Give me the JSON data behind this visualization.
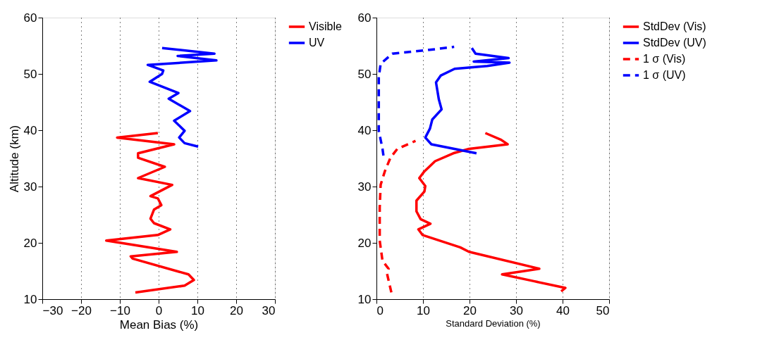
{
  "chart_data": [
    {
      "type": "line",
      "xlabel": "Mean Bias (%)",
      "ylabel": "Altitude (km)",
      "xlim": [
        -30,
        30
      ],
      "xticks": [
        -30,
        -20,
        -10,
        0,
        10,
        20,
        30
      ],
      "ylim": [
        10,
        60
      ],
      "yticks": [
        10,
        20,
        30,
        40,
        50,
        60
      ],
      "grid": "x",
      "legend": "right",
      "line_style": "solid",
      "series": [
        {
          "name": "Visible",
          "color": "#ff0000",
          "x": [
            -6.0,
            6.7,
            9.1,
            7.7,
            -6.7,
            -7.2,
            4.7,
            -13.5,
            -0.2,
            3.0,
            -1.2,
            -2.1,
            -1.2,
            0.7,
            -0.2,
            -2.1,
            3.5,
            -5.3,
            1.6,
            -5.3,
            -5.3,
            4.0,
            -10.7,
            -0.2
          ],
          "values": [
            11.2,
            12.4,
            13.4,
            14.4,
            17.2,
            17.6,
            18.4,
            20.4,
            21.4,
            22.4,
            23.5,
            24.3,
            25.9,
            26.7,
            27.9,
            28.3,
            30.3,
            31.5,
            33.5,
            35.1,
            35.9,
            37.5,
            38.7,
            39.5
          ]
        },
        {
          "name": "UV",
          "color": "#0000ff",
          "x": [
            10.2,
            6.7,
            5.3,
            6.7,
            4.0,
            8.1,
            2.6,
            5.1,
            -2.3,
            0.9,
            1.2,
            -2.8,
            14.9,
            4.9,
            14.4,
            0.9
          ],
          "values": [
            37.1,
            37.7,
            38.7,
            39.9,
            41.7,
            43.4,
            45.6,
            46.6,
            48.6,
            50.0,
            50.6,
            51.6,
            52.4,
            53.2,
            53.6,
            54.6
          ]
        }
      ]
    },
    {
      "type": "line",
      "xlabel": "Standard Deviation (%)",
      "xlim": [
        0,
        50
      ],
      "xticks": [
        0,
        10,
        20,
        30,
        40,
        50
      ],
      "ylim": [
        10,
        60
      ],
      "yticks": [
        10,
        20,
        30,
        40,
        50,
        60
      ],
      "grid": "x",
      "legend": "right",
      "series": [
        {
          "name": "StdDev (Vis)",
          "color": "#ff0000",
          "line_style": "solid",
          "x": [
            39.7,
            40.6,
            33.8,
            27.0,
            35.0,
            19.9,
            18.0,
            9.9,
            9.0,
            11.6,
            9.5,
            8.6,
            8.6,
            10.3,
            10.5,
            9.2,
            10.3,
            12.6,
            16.5,
            19.9,
            28.2,
            26.8,
            23.4
          ],
          "values": [
            11.4,
            12.0,
            13.2,
            14.4,
            15.4,
            18.4,
            19.2,
            21.4,
            22.4,
            23.4,
            24.2,
            25.6,
            27.5,
            29.1,
            30.1,
            31.5,
            32.7,
            34.5,
            35.9,
            36.7,
            37.5,
            38.3,
            39.5
          ]
        },
        {
          "name": "StdDev (UV)",
          "color": "#0000ff",
          "line_style": "solid",
          "x": [
            21.5,
            11.8,
            10.5,
            11.5,
            12.0,
            14.0,
            13.4,
            12.8,
            13.8,
            16.8,
            23.8,
            28.6,
            20.9,
            28.4,
            21.3,
            20.5
          ],
          "values": [
            35.9,
            37.5,
            38.7,
            40.3,
            41.9,
            43.7,
            45.5,
            48.5,
            49.7,
            50.9,
            51.4,
            52.0,
            52.2,
            52.8,
            53.6,
            54.6
          ]
        },
        {
          "name": "1 σ (Vis)",
          "color": "#ff0000",
          "line_style": "dashed",
          "x": [
            3.2,
            2.2,
            2.6,
            1.3,
            0.7,
            0.7,
            0.9,
            1.8,
            3.0,
            4.5,
            8.4
          ],
          "values": [
            11.2,
            14.8,
            15.4,
            16.8,
            20.4,
            26.3,
            30.3,
            32.7,
            35.1,
            36.7,
            38.1
          ]
        },
        {
          "name": "1 σ (UV)",
          "color": "#0000ff",
          "line_style": "dashed",
          "x": [
            1.5,
            1.3,
            0.5,
            0.5,
            0.9,
            3.4,
            10.7,
            16.7
          ],
          "values": [
            35.5,
            36.7,
            39.9,
            49.4,
            51.8,
            53.6,
            54.2,
            54.8
          ]
        }
      ]
    }
  ]
}
